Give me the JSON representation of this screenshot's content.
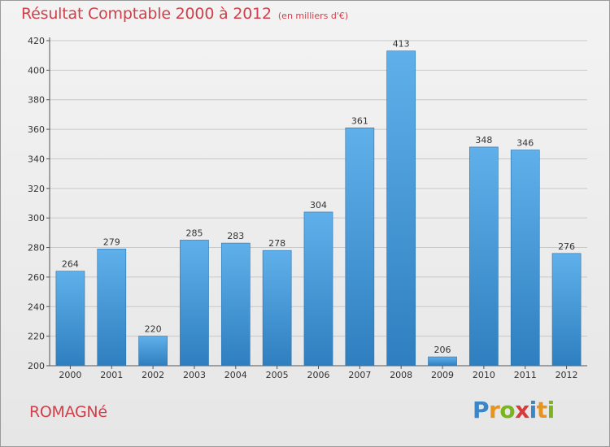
{
  "title": "Résultat Comptable 2000 à 2012",
  "subtitle": "(en milliers d'€)",
  "commune": "ROMAGNé",
  "logo": {
    "text": "Proxiti",
    "letters": [
      "P",
      "r",
      "o",
      "x",
      "i",
      "t",
      "i"
    ],
    "colors": [
      "#3a86c8",
      "#e8941c",
      "#7ab51d",
      "#d93a3a",
      "#3a86c8",
      "#e8941c",
      "#7ab51d"
    ]
  },
  "colors": {
    "title": "#d0404a",
    "bar_top": "#5fb0ea",
    "bar_bottom": "#2f7fc0",
    "axis_text": "#333333",
    "grid": "#c8c8c8"
  },
  "chart_data": {
    "type": "bar",
    "title": "Résultat Comptable 2000 à 2012",
    "subtitle": "(en milliers d'€)",
    "categories": [
      "2000",
      "2001",
      "2002",
      "2003",
      "2004",
      "2005",
      "2006",
      "2007",
      "2008",
      "2009",
      "2010",
      "2011",
      "2012"
    ],
    "values": [
      264,
      279,
      220,
      285,
      283,
      278,
      304,
      361,
      413,
      206,
      348,
      346,
      276
    ],
    "ylim": [
      200,
      420
    ],
    "yticks": [
      200,
      220,
      240,
      260,
      280,
      300,
      320,
      340,
      360,
      380,
      400,
      420
    ],
    "xlabel": "",
    "ylabel": "",
    "grid": true,
    "data_labels": true
  }
}
